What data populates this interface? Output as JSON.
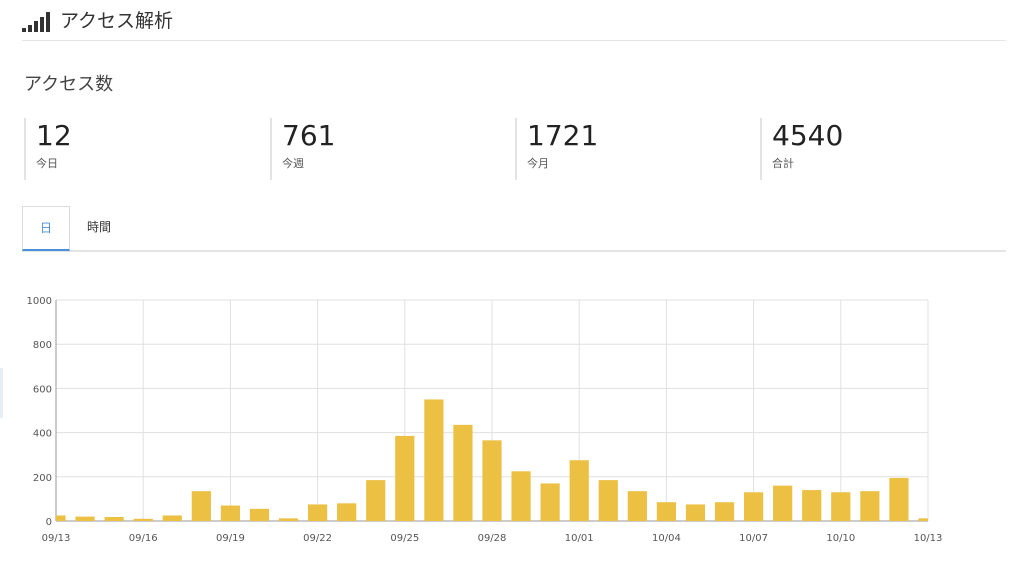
{
  "header": {
    "title": "アクセス解析",
    "icon": "signal-bars-icon"
  },
  "section": {
    "title": "アクセス数"
  },
  "stats": [
    {
      "value": "12",
      "label": "今日"
    },
    {
      "value": "761",
      "label": "今週"
    },
    {
      "value": "1721",
      "label": "今月"
    },
    {
      "value": "4540",
      "label": "合計"
    }
  ],
  "tabs": [
    {
      "label": "日",
      "active": true
    },
    {
      "label": "時間",
      "active": false
    }
  ],
  "colors": {
    "bar": "#ecc043",
    "accent": "#4a90d9",
    "grid": "#e0e0e0"
  },
  "chart_data": {
    "type": "bar",
    "categories": [
      "09/13",
      "09/14",
      "09/15",
      "09/16",
      "09/17",
      "09/18",
      "09/19",
      "09/20",
      "09/21",
      "09/22",
      "09/23",
      "09/24",
      "09/25",
      "09/26",
      "09/27",
      "09/28",
      "09/29",
      "09/30",
      "10/01",
      "10/02",
      "10/03",
      "10/04",
      "10/05",
      "10/06",
      "10/07",
      "10/08",
      "10/09",
      "10/10",
      "10/11",
      "10/12",
      "10/13"
    ],
    "values": [
      25,
      20,
      18,
      10,
      25,
      135,
      70,
      55,
      12,
      75,
      80,
      185,
      385,
      550,
      435,
      365,
      225,
      170,
      275,
      185,
      135,
      85,
      75,
      85,
      130,
      160,
      140,
      130,
      135,
      195,
      12
    ],
    "yticks": [
      0,
      200,
      400,
      600,
      800,
      1000
    ],
    "xtick_labels": [
      "09/13",
      "09/16",
      "09/19",
      "09/22",
      "09/25",
      "09/28",
      "10/01",
      "10/04",
      "10/07",
      "10/10",
      "10/13"
    ],
    "ylim": [
      0,
      1000
    ],
    "grid": true
  }
}
